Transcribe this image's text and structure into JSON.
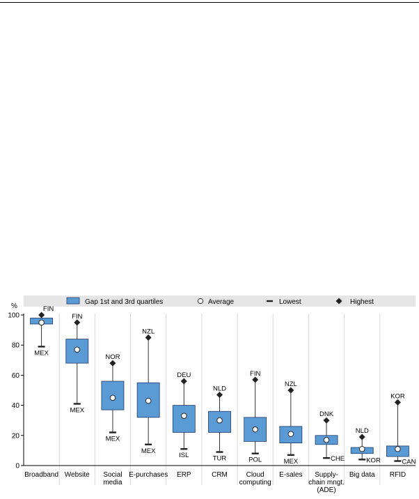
{
  "chart_data": {
    "type": "box",
    "y_unit_label": "%",
    "ylim": [
      0,
      100
    ],
    "y_ticks": [
      "0",
      "20",
      "40",
      "60",
      "80",
      "100"
    ],
    "grid": "vertical-separators",
    "legend_position": "top",
    "legend": {
      "gap": "Gap 1st and 3rd quartiles",
      "average": "Average",
      "lowest": "Lowest",
      "highest": "Highest"
    },
    "colors": {
      "box_fill": "#5b9bd5",
      "box_stroke": "#1f3864",
      "legend_band": "#e6e6e6",
      "separator": "#d9d9d9",
      "marker": "#222222"
    },
    "categories": [
      {
        "label": [
          "Broadband"
        ],
        "q1": 94,
        "q3": 98,
        "avg": 95,
        "low": 79,
        "high": 100,
        "low_code": "MEX",
        "high_code": "FIN"
      },
      {
        "label": [
          "Website"
        ],
        "q1": 68,
        "q3": 84,
        "avg": 77,
        "low": 41,
        "high": 95,
        "low_code": "MEX",
        "high_code": "FIN"
      },
      {
        "label": [
          "Social",
          "media"
        ],
        "q1": 37,
        "q3": 56,
        "avg": 45,
        "low": 22,
        "high": 68,
        "low_code": "MEX",
        "high_code": "NOR"
      },
      {
        "label": [
          "E-purchases"
        ],
        "q1": 32,
        "q3": 55,
        "avg": 43,
        "low": 14,
        "high": 85,
        "low_code": "MEX",
        "high_code": "NZL"
      },
      {
        "label": [
          "ERP"
        ],
        "q1": 22,
        "q3": 40,
        "avg": 33,
        "low": 11,
        "high": 56,
        "low_code": "ISL",
        "high_code": "DEU"
      },
      {
        "label": [
          "CRM"
        ],
        "q1": 22,
        "q3": 36,
        "avg": 30,
        "low": 9,
        "high": 47,
        "low_code": "TUR",
        "high_code": "NLD"
      },
      {
        "label": [
          "Cloud",
          "computing"
        ],
        "q1": 16,
        "q3": 32,
        "avg": 24,
        "low": 8,
        "high": 57,
        "low_code": "POL",
        "high_code": "FIN"
      },
      {
        "label": [
          "E-sales"
        ],
        "q1": 15,
        "q3": 26,
        "avg": 21,
        "low": 7,
        "high": 50,
        "low_code": "MEX",
        "high_code": "NZL"
      },
      {
        "label": [
          "Supply-",
          "chain mngt.",
          "(ADE)"
        ],
        "q1": 14,
        "q3": 20,
        "avg": 17,
        "low": 5,
        "high": 30,
        "low_code": "CHE",
        "high_code": "DNK"
      },
      {
        "label": [
          "Big data"
        ],
        "q1": 8,
        "q3": 12,
        "avg": 11,
        "low": 4,
        "high": 19,
        "low_code": "KOR",
        "high_code": "NLD"
      },
      {
        "label": [
          "RFID"
        ],
        "q1": 6,
        "q3": 13,
        "avg": 11,
        "low": 3,
        "high": 42,
        "low_code": "CAN",
        "high_code": "KOR"
      }
    ]
  }
}
